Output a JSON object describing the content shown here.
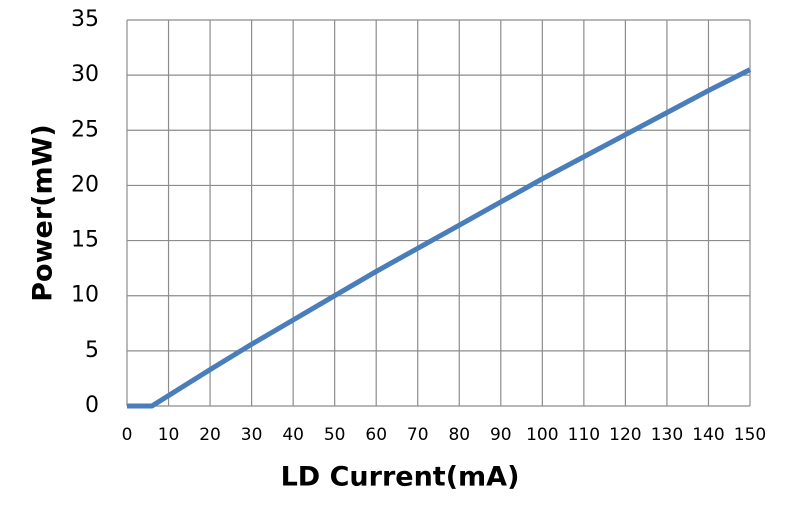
{
  "chart_data": {
    "type": "line",
    "xlabel": "LD Current(mA)",
    "ylabel": "Power(mW)",
    "x": [
      0,
      6,
      20,
      30,
      40,
      50,
      60,
      70,
      80,
      90,
      100,
      110,
      120,
      130,
      140,
      150
    ],
    "series": [
      {
        "color": "#4a7ebb",
        "values": [
          0,
          0,
          3.3,
          5.6,
          7.8,
          10,
          12.2,
          14.3,
          16.4,
          18.5,
          20.6,
          22.6,
          24.6,
          26.6,
          28.6,
          30.5
        ]
      }
    ],
    "xlim": [
      0,
      150
    ],
    "xticks": [
      0,
      10,
      20,
      30,
      40,
      50,
      60,
      70,
      80,
      90,
      100,
      110,
      120,
      130,
      140,
      150
    ],
    "ylim": [
      0,
      35
    ],
    "yticks": [
      0,
      5,
      10,
      15,
      20,
      25,
      30,
      35
    ],
    "grid": true
  }
}
